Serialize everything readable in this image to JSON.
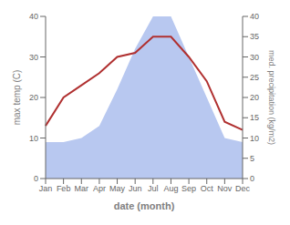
{
  "chart_data": {
    "type": "line",
    "categories": [
      "Jan",
      "Feb",
      "Mar",
      "Apr",
      "May",
      "Jun",
      "Jul",
      "Aug",
      "Sep",
      "Oct",
      "Nov",
      "Dec"
    ],
    "xlabel": "date (month)",
    "ylabel": "max temp (C)",
    "y2label": "med. precipitation (kg/m2)",
    "ylim": [
      0,
      40
    ],
    "yticks": [
      0,
      10,
      20,
      30,
      40
    ],
    "y2lim": [
      0,
      40
    ],
    "y2ticks": [
      0,
      5,
      10,
      15,
      20,
      25,
      30,
      35,
      40
    ],
    "grid": false,
    "series": [
      {
        "type": "area",
        "axis": "y2",
        "color": "#b8c8f0",
        "values": [
          9,
          9,
          10,
          13,
          22,
          32,
          40,
          40,
          30,
          20,
          10,
          9
        ]
      },
      {
        "type": "line",
        "color": "#b03030",
        "values": [
          13,
          20,
          23,
          26,
          30,
          31,
          35,
          35,
          30,
          24,
          14,
          12
        ]
      }
    ]
  }
}
